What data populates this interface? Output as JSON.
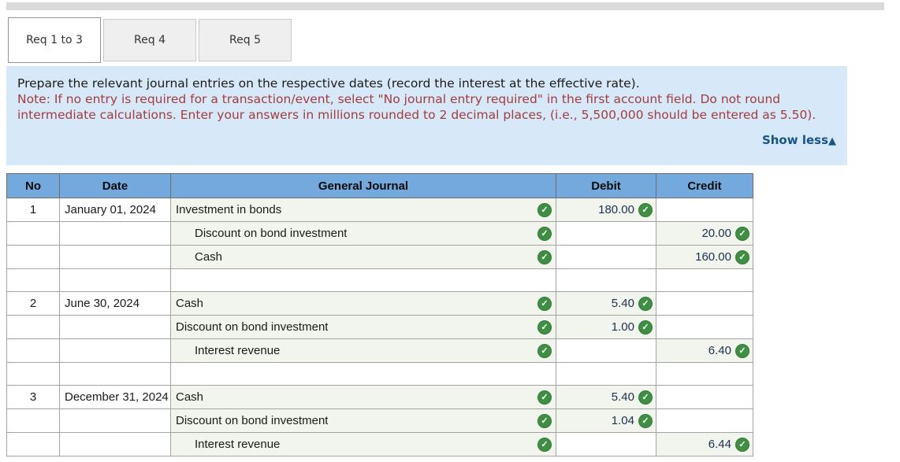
{
  "tabs": {
    "items": [
      {
        "label": "Req 1 to 3",
        "active": true
      },
      {
        "label": "Req 4",
        "active": false
      },
      {
        "label": "Req 5",
        "active": false
      }
    ]
  },
  "instructions": {
    "prompt": "Prepare the relevant journal entries on the respective dates (record the interest at the effective rate).",
    "note": "Note: If no entry is required for a transaction/event, select \"No journal entry required\" in the first account field. Do not round intermediate calculations. Enter your answers in millions rounded to 2 decimal places, (i.e., 5,500,000 should be entered as 5.50).",
    "show_less_label": "Show less",
    "show_less_icon": "▲"
  },
  "table": {
    "headers": [
      "No",
      "Date",
      "General Journal",
      "Debit",
      "Credit"
    ],
    "rows": [
      {
        "no": "1",
        "date": "January 01, 2024",
        "account": "Investment in bonds",
        "indent": false,
        "debit": "180.00",
        "credit": ""
      },
      {
        "no": "",
        "date": "",
        "account": "Discount on bond investment",
        "indent": true,
        "debit": "",
        "credit": "20.00"
      },
      {
        "no": "",
        "date": "",
        "account": "Cash",
        "indent": true,
        "debit": "",
        "credit": "160.00"
      },
      {
        "spacer": true
      },
      {
        "no": "2",
        "date": "June 30, 2024",
        "account": "Cash",
        "indent": false,
        "debit": "5.40",
        "credit": ""
      },
      {
        "no": "",
        "date": "",
        "account": "Discount on bond investment",
        "indent": false,
        "debit": "1.00",
        "credit": ""
      },
      {
        "no": "",
        "date": "",
        "account": "Interest revenue",
        "indent": true,
        "debit": "",
        "credit": "6.40"
      },
      {
        "spacer": true
      },
      {
        "no": "3",
        "date": "December 31, 2024",
        "account": "Cash",
        "indent": false,
        "debit": "5.40",
        "credit": ""
      },
      {
        "no": "",
        "date": "",
        "account": "Discount on bond investment",
        "indent": false,
        "debit": "1.04",
        "credit": ""
      },
      {
        "no": "",
        "date": "",
        "account": "Interest revenue",
        "indent": true,
        "debit": "",
        "credit": "6.44"
      }
    ]
  },
  "colors": {
    "header_blue": "#74a9dd",
    "check_green": "#3f8e43",
    "panel_blue": "#d7e9f8",
    "note_red": "#a33c3c",
    "show_less_blue": "#17548a",
    "filled_cell_tint": "#f1f5ee"
  }
}
